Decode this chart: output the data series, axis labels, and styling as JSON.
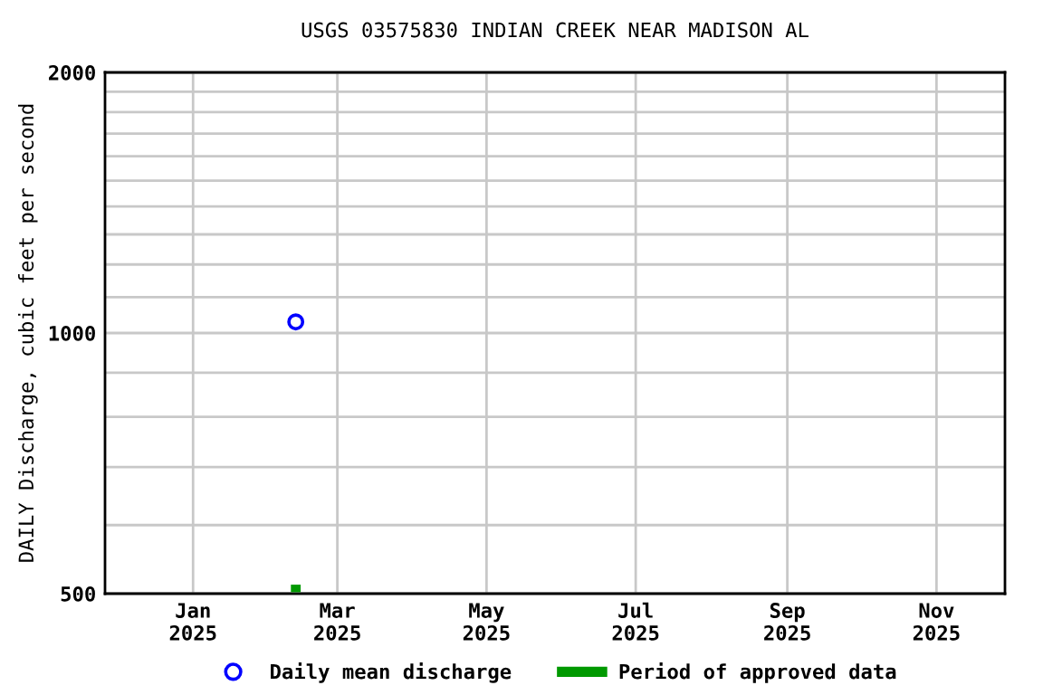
{
  "chart_data": {
    "type": "scatter",
    "title": "USGS 03575830 INDIAN CREEK NEAR MADISON AL",
    "ylabel": "DAILY Discharge, cubic feet per second",
    "series": [
      {
        "name": "Daily mean discharge",
        "type": "scatter",
        "color": "#0000ff",
        "marker": "circle",
        "x": [
          "2025-02-12"
        ],
        "values": [
          1030
        ]
      },
      {
        "name": "Period of approved data",
        "type": "line",
        "color": "#009900",
        "marker": "none",
        "x": [
          "2025-02-10",
          "2025-02-14"
        ],
        "values": [
          507,
          507
        ]
      }
    ],
    "log": "y",
    "xlim": [
      "2024-11-26",
      "2025-11-29"
    ],
    "ylim": [
      500,
      2000
    ],
    "xticks": [
      {
        "value": "2025-01-01",
        "label": "Jan\n2025"
      },
      {
        "value": "2025-03-01",
        "label": "Mar\n2025"
      },
      {
        "value": "2025-05-01",
        "label": "May\n2025"
      },
      {
        "value": "2025-07-01",
        "label": "Jul\n2025"
      },
      {
        "value": "2025-09-01",
        "label": "Sep\n2025"
      },
      {
        "value": "2025-11-01",
        "label": "Nov\n2025"
      }
    ],
    "yticks": [
      500,
      {
        "value": 600,
        "label": null
      },
      {
        "value": 700,
        "label": null
      },
      {
        "value": 800,
        "label": null
      },
      {
        "value": 900,
        "label": null
      },
      1000,
      {
        "value": 1100,
        "label": null
      },
      {
        "value": 1200,
        "label": null
      },
      {
        "value": 1300,
        "label": null
      },
      {
        "value": 1400,
        "label": null
      },
      {
        "value": 1500,
        "label": null
      },
      {
        "value": 1600,
        "label": null
      },
      {
        "value": 1700,
        "label": null
      },
      {
        "value": 1800,
        "label": null
      },
      {
        "value": 1900,
        "label": null
      },
      2000
    ],
    "grid": true,
    "legend": "bottom"
  }
}
